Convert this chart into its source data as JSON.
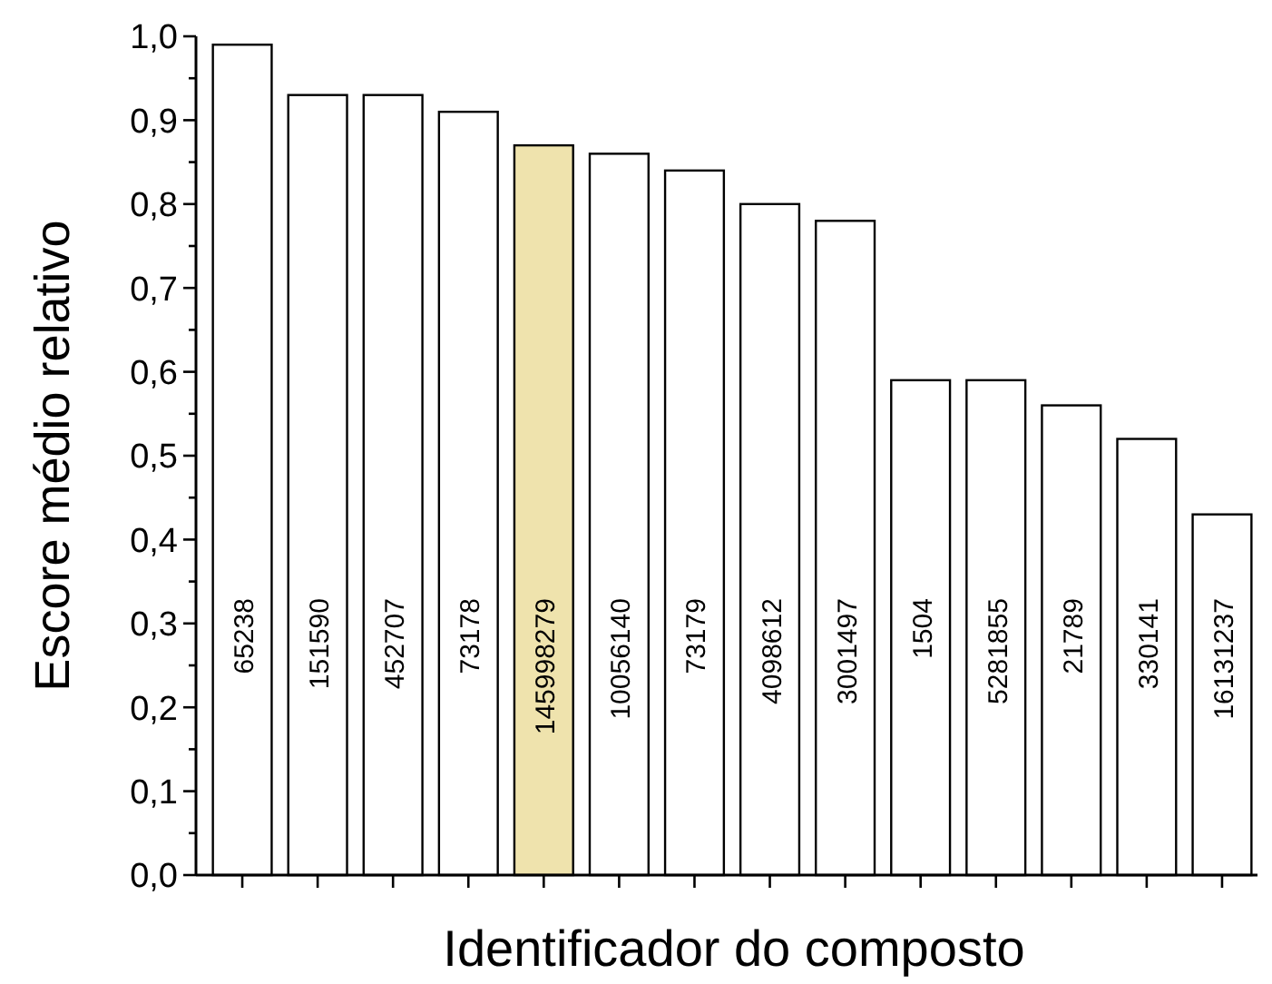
{
  "chart_data": {
    "type": "bar",
    "xlabel": "Identificador do composto",
    "ylabel": "Escore médio relativo",
    "categories": [
      "65238",
      "151590",
      "452707",
      "73178",
      "145998279",
      "10056140",
      "73179",
      "4098612",
      "3001497",
      "1504",
      "5281855",
      "21789",
      "330141",
      "16131237"
    ],
    "values": [
      0.99,
      0.93,
      0.93,
      0.91,
      0.87,
      0.86,
      0.84,
      0.8,
      0.78,
      0.59,
      0.59,
      0.56,
      0.52,
      0.43
    ],
    "colors": [
      "#ffffff",
      "#ffffff",
      "#ffffff",
      "#ffffff",
      "#efe3ad",
      "#ffffff",
      "#ffffff",
      "#ffffff",
      "#ffffff",
      "#ffffff",
      "#ffffff",
      "#ffffff",
      "#ffffff",
      "#ffffff"
    ],
    "ylim": [
      0,
      1
    ],
    "yticks": [
      {
        "value": 0,
        "label": "0,0"
      },
      {
        "value": 0.05,
        "label": null
      },
      {
        "value": 0.1,
        "label": "0,1"
      },
      {
        "value": 0.15,
        "label": null
      },
      {
        "value": 0.2,
        "label": "0,2"
      },
      {
        "value": 0.25,
        "label": null
      },
      {
        "value": 0.3,
        "label": "0,3"
      },
      {
        "value": 0.35,
        "label": null
      },
      {
        "value": 0.4,
        "label": "0,4"
      },
      {
        "value": 0.45,
        "label": null
      },
      {
        "value": 0.5,
        "label": "0,5"
      },
      {
        "value": 0.55,
        "label": null
      },
      {
        "value": 0.6,
        "label": "0,6"
      },
      {
        "value": 0.65,
        "label": null
      },
      {
        "value": 0.7,
        "label": "0,7"
      },
      {
        "value": 0.75,
        "label": null
      },
      {
        "value": 0.8,
        "label": "0,8"
      },
      {
        "value": 0.85,
        "label": null
      },
      {
        "value": 0.9,
        "label": "0,9"
      },
      {
        "value": 0.95,
        "label": null
      },
      {
        "value": 1,
        "label": "1,0"
      }
    ]
  }
}
